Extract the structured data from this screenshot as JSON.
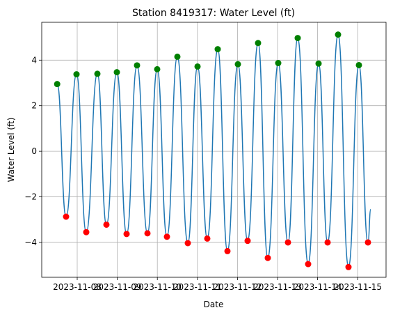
{
  "chart_data": {
    "type": "line",
    "title": "Station 8419317: Water Level (ft)",
    "xlabel": "Date",
    "ylabel": "Water Level (ft)",
    "xlim": [
      "2023-11-07T02:45",
      "2023-11-15T17:00"
    ],
    "xticks": [
      "2023-11-08",
      "2023-11-09",
      "2023-11-10",
      "2023-11-11",
      "2023-11-12",
      "2023-11-13",
      "2023-11-14",
      "2023-11-15"
    ],
    "ylim": [
      -5.53,
      5.66
    ],
    "yticks": [
      {
        "value": -4,
        "label": "−4"
      },
      {
        "value": -2,
        "label": "−2"
      },
      0,
      2,
      4
    ],
    "grid": true,
    "series": [
      {
        "type": "line",
        "color": "#1f77b4",
        "x": [
          "2023-11-07T12:00",
          "2023-11-07T17:20",
          "2023-11-07T23:35",
          "2023-11-08T05:25",
          "2023-11-08T12:05",
          "2023-11-08T17:30",
          "2023-11-08T23:45",
          "2023-11-09T05:35",
          "2023-11-09T11:50",
          "2023-11-09T18:05",
          "2023-11-09T23:55",
          "2023-11-10T05:45",
          "2023-11-10T12:00",
          "2023-11-10T18:15",
          "2023-11-11T00:05",
          "2023-11-11T05:55",
          "2023-11-11T12:10",
          "2023-11-11T18:00",
          "2023-11-12T00:15",
          "2023-11-12T06:05",
          "2023-11-12T12:20",
          "2023-11-12T18:10",
          "2023-11-13T00:25",
          "2023-11-13T06:15",
          "2023-11-13T12:05",
          "2023-11-13T18:20",
          "2023-11-14T00:35",
          "2023-11-14T06:00",
          "2023-11-14T12:15",
          "2023-11-14T18:30",
          "2023-11-15T00:45",
          "2023-11-15T06:10",
          "2023-11-15T07:50"
        ],
        "values": [
          2.95,
          -2.87,
          3.38,
          -3.55,
          3.4,
          -3.22,
          3.47,
          -3.63,
          3.77,
          -3.6,
          3.6,
          -3.75,
          4.15,
          -4.03,
          3.72,
          -3.83,
          4.48,
          -4.38,
          3.82,
          -3.93,
          4.75,
          -4.68,
          3.87,
          -4.0,
          4.97,
          -4.95,
          3.85,
          -4.0,
          5.12,
          -5.08,
          3.78,
          -4.0,
          -2.55
        ]
      },
      {
        "type": "scatter",
        "color": "green",
        "x": [
          "2023-11-07T12:00",
          "2023-11-07T23:35",
          "2023-11-08T12:05",
          "2023-11-08T23:45",
          "2023-11-09T11:50",
          "2023-11-09T23:55",
          "2023-11-10T12:00",
          "2023-11-11T00:05",
          "2023-11-11T12:10",
          "2023-11-12T00:15",
          "2023-11-12T12:20",
          "2023-11-13T00:25",
          "2023-11-13T12:05",
          "2023-11-14T00:35",
          "2023-11-14T12:15",
          "2023-11-15T00:45"
        ],
        "values": [
          2.95,
          3.38,
          3.4,
          3.47,
          3.77,
          3.6,
          4.15,
          3.72,
          4.48,
          3.82,
          4.75,
          3.87,
          4.97,
          3.85,
          5.12,
          3.78
        ]
      },
      {
        "type": "scatter",
        "color": "red",
        "x": [
          "2023-11-07T17:20",
          "2023-11-08T05:25",
          "2023-11-08T17:30",
          "2023-11-09T05:35",
          "2023-11-09T18:05",
          "2023-11-10T05:45",
          "2023-11-10T18:15",
          "2023-11-11T05:55",
          "2023-11-11T18:00",
          "2023-11-12T06:05",
          "2023-11-12T18:10",
          "2023-11-13T06:15",
          "2023-11-13T18:20",
          "2023-11-14T06:00",
          "2023-11-14T18:30",
          "2023-11-15T06:10"
        ],
        "values": [
          -2.87,
          -3.55,
          -3.22,
          -3.63,
          -3.6,
          -3.75,
          -4.03,
          -3.83,
          -4.38,
          -3.93,
          -4.68,
          -4.0,
          -4.95,
          -4.0,
          -5.08,
          -4.0
        ]
      }
    ]
  }
}
